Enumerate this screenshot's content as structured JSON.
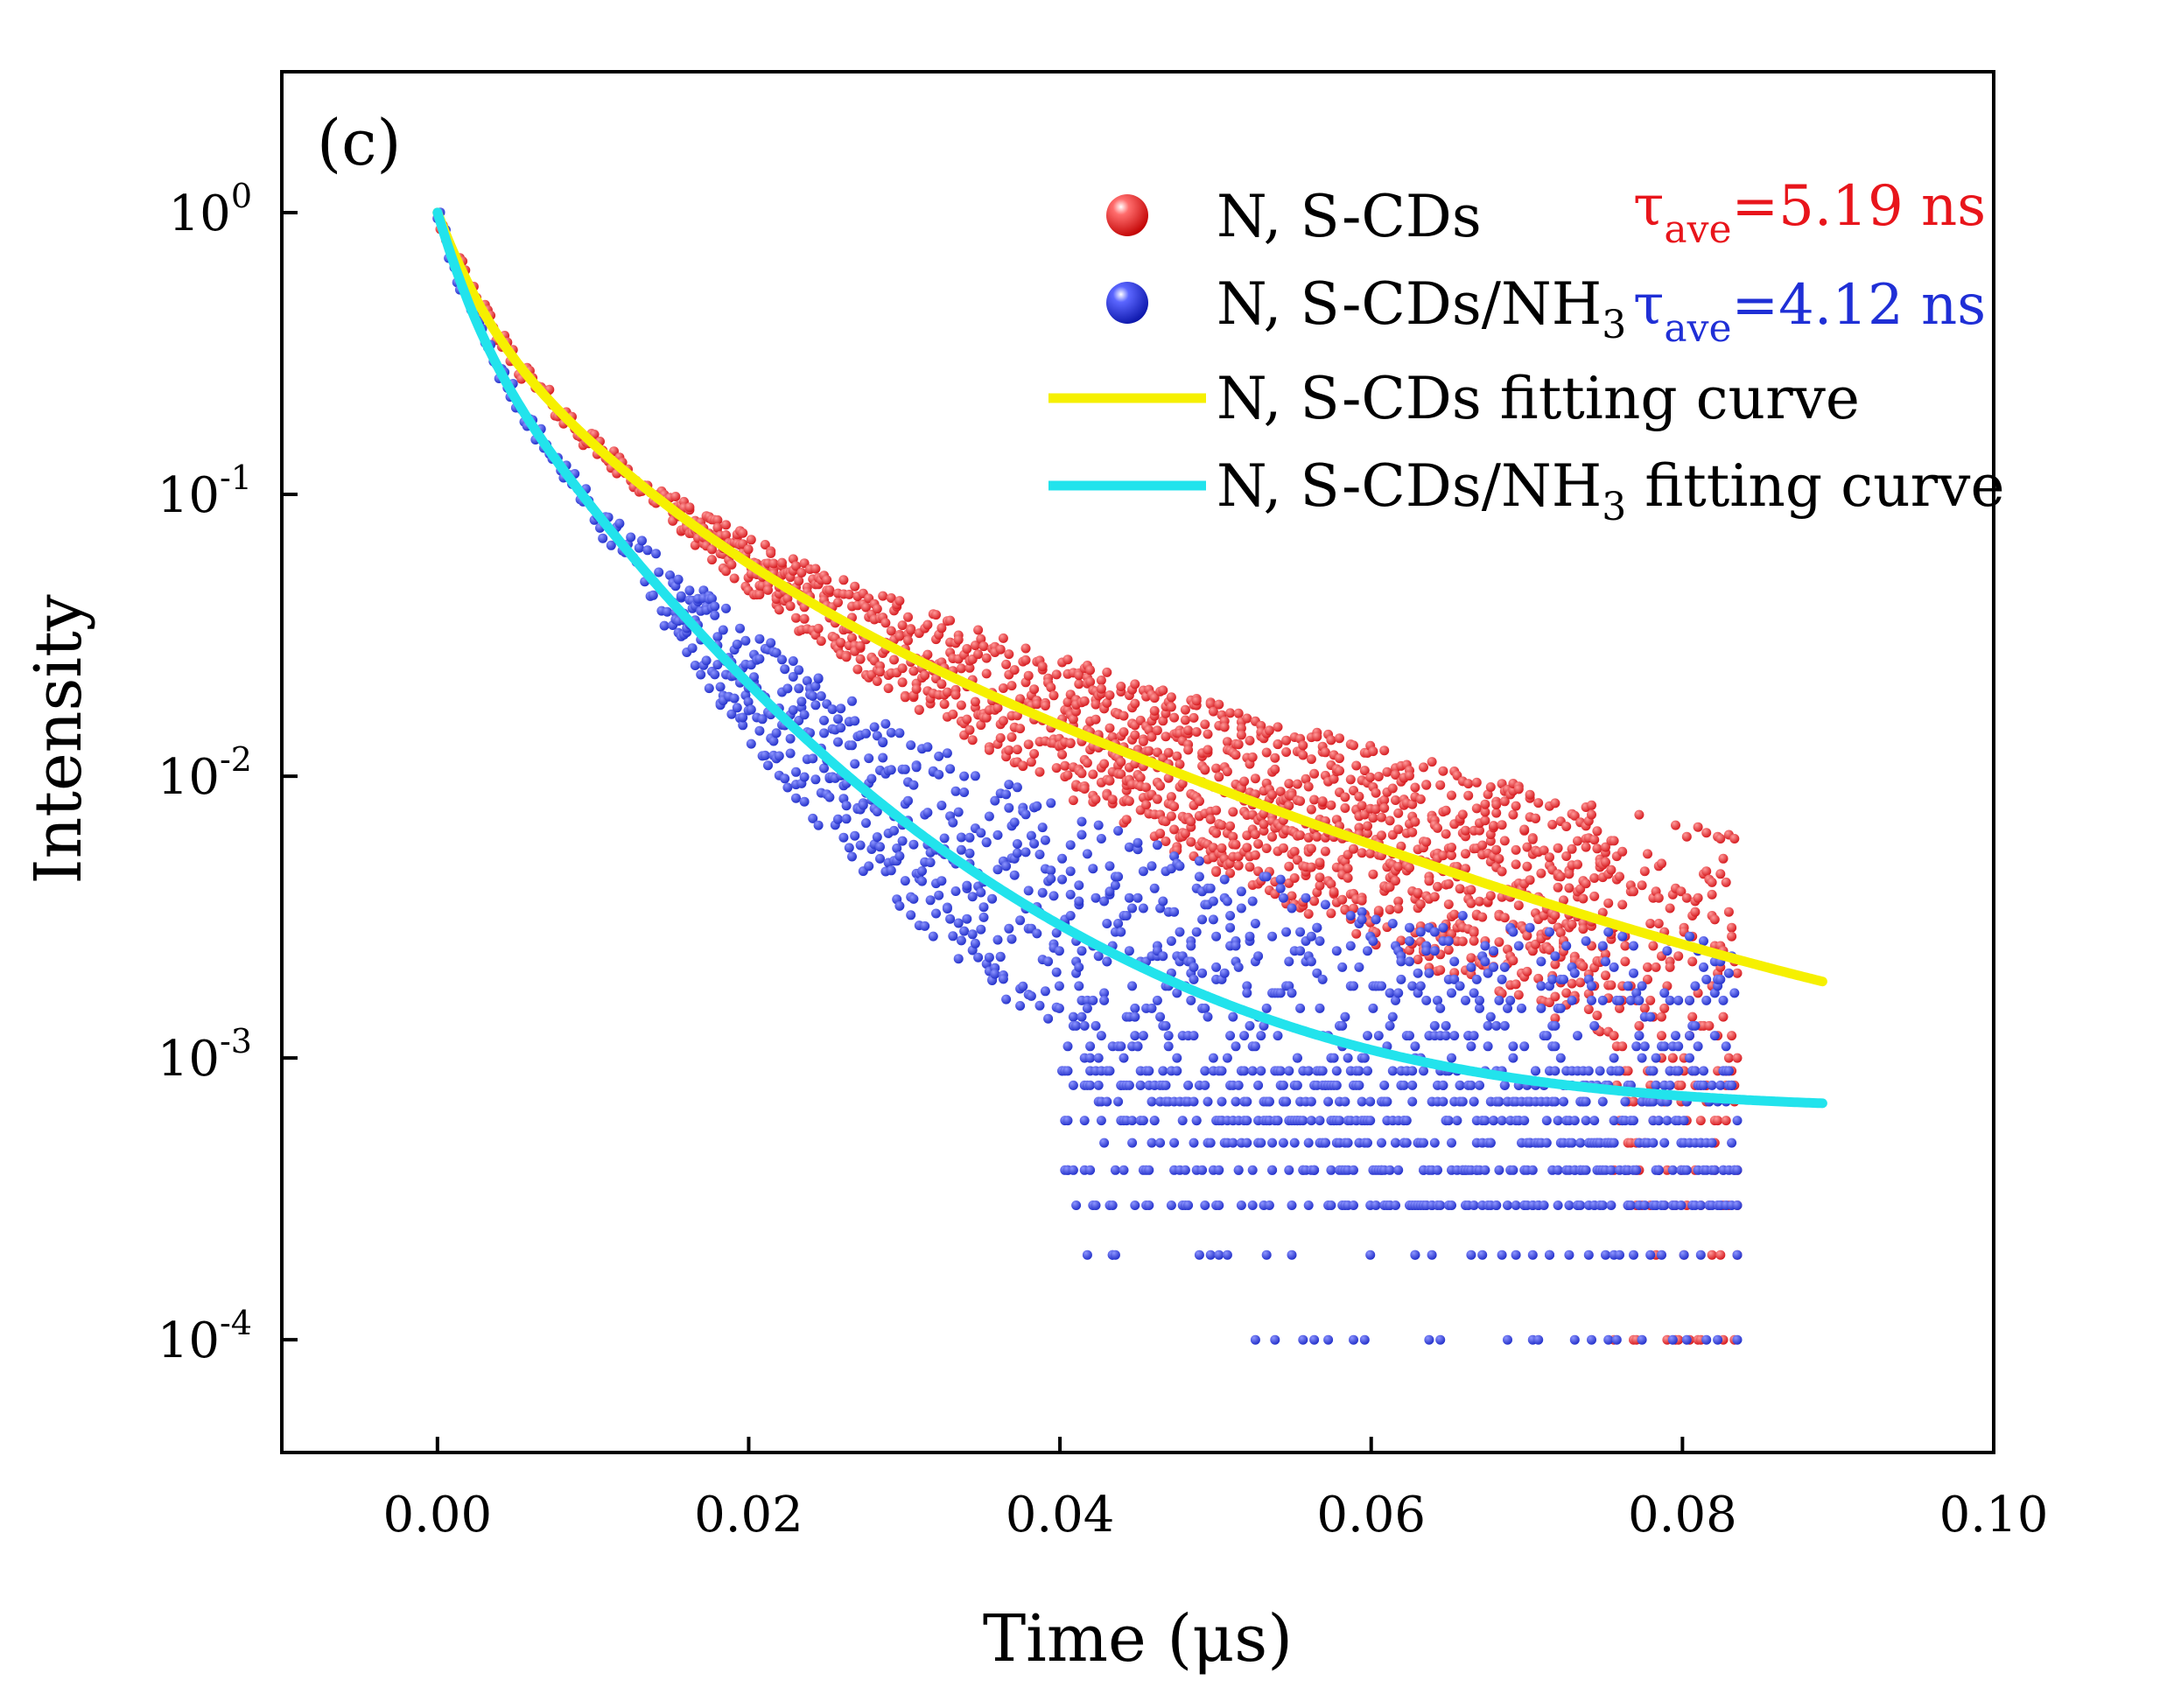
{
  "chart_data": {
    "type": "scatter",
    "panel_label": "(c)",
    "xlabel": "Time (μs)",
    "ylabel": "Intensity",
    "xlim": [
      -0.01,
      0.1
    ],
    "ylim_log10": [
      -4.4,
      0.5
    ],
    "y_scale": "log",
    "x_ticks": [
      0.0,
      0.02,
      0.04,
      0.06,
      0.08,
      0.1
    ],
    "x_tick_labels": [
      "0.00",
      "0.02",
      "0.04",
      "0.06",
      "0.08",
      "0.10"
    ],
    "y_ticks": [
      {
        "base": "10",
        "exp": "0",
        "log10": 0
      },
      {
        "base": "10",
        "exp": "-1",
        "log10": -1
      },
      {
        "base": "10",
        "exp": "-2",
        "log10": -2
      },
      {
        "base": "10",
        "exp": "-3",
        "log10": -3
      },
      {
        "base": "10",
        "exp": "-4",
        "log10": -4
      }
    ],
    "series": [
      {
        "name": "N, S-CDs",
        "kind": "points",
        "color": "#e8151b",
        "tau_label": "τ",
        "tau_sub": "ave",
        "tau_value": "=5.19 ns",
        "decay": {
          "A1": 0.5,
          "t1": 0.00185,
          "A2": 0.4,
          "t2": 0.0066,
          "A3": 0.1,
          "t3": 0.02,
          "offset": 0.0007
        },
        "t_end": 0.0836,
        "noise_floor_levels": [
          0.0009,
          0.0008,
          0.0007,
          0.0006,
          0.0005,
          0.0004,
          0.0003,
          0.0002,
          0.0001
        ]
      },
      {
        "name": "N, S-CDs/NH",
        "name_sub": "3",
        "kind": "points",
        "color": "#1f2fd6",
        "tau_label": "τ",
        "tau_sub": "ave",
        "tau_value": "=4.12 ns",
        "decay": {
          "A1": 0.55,
          "t1": 0.0016,
          "A2": 0.4,
          "t2": 0.0055,
          "A3": 0.05,
          "t3": 0.0125,
          "offset": 0.00065
        },
        "t_end": 0.0836,
        "noise_floor_levels": [
          0.0009,
          0.0008,
          0.0007,
          0.0006,
          0.0005,
          0.0004,
          0.0003,
          0.0002,
          0.0001
        ]
      },
      {
        "name": "N, S-CDs fitting curve",
        "kind": "line",
        "color": "#f6f000",
        "fit_of": "N, S-CDs",
        "t_end": 0.089
      },
      {
        "name": "N, S-CDs/NH",
        "name_sub": "3",
        "name_after": " fitting curve",
        "kind": "line",
        "color": "#22e3ec",
        "fit_of": "N, S-CDs/NH3",
        "t_end": 0.089
      }
    ],
    "legend_position": "top-right",
    "grid": false
  }
}
